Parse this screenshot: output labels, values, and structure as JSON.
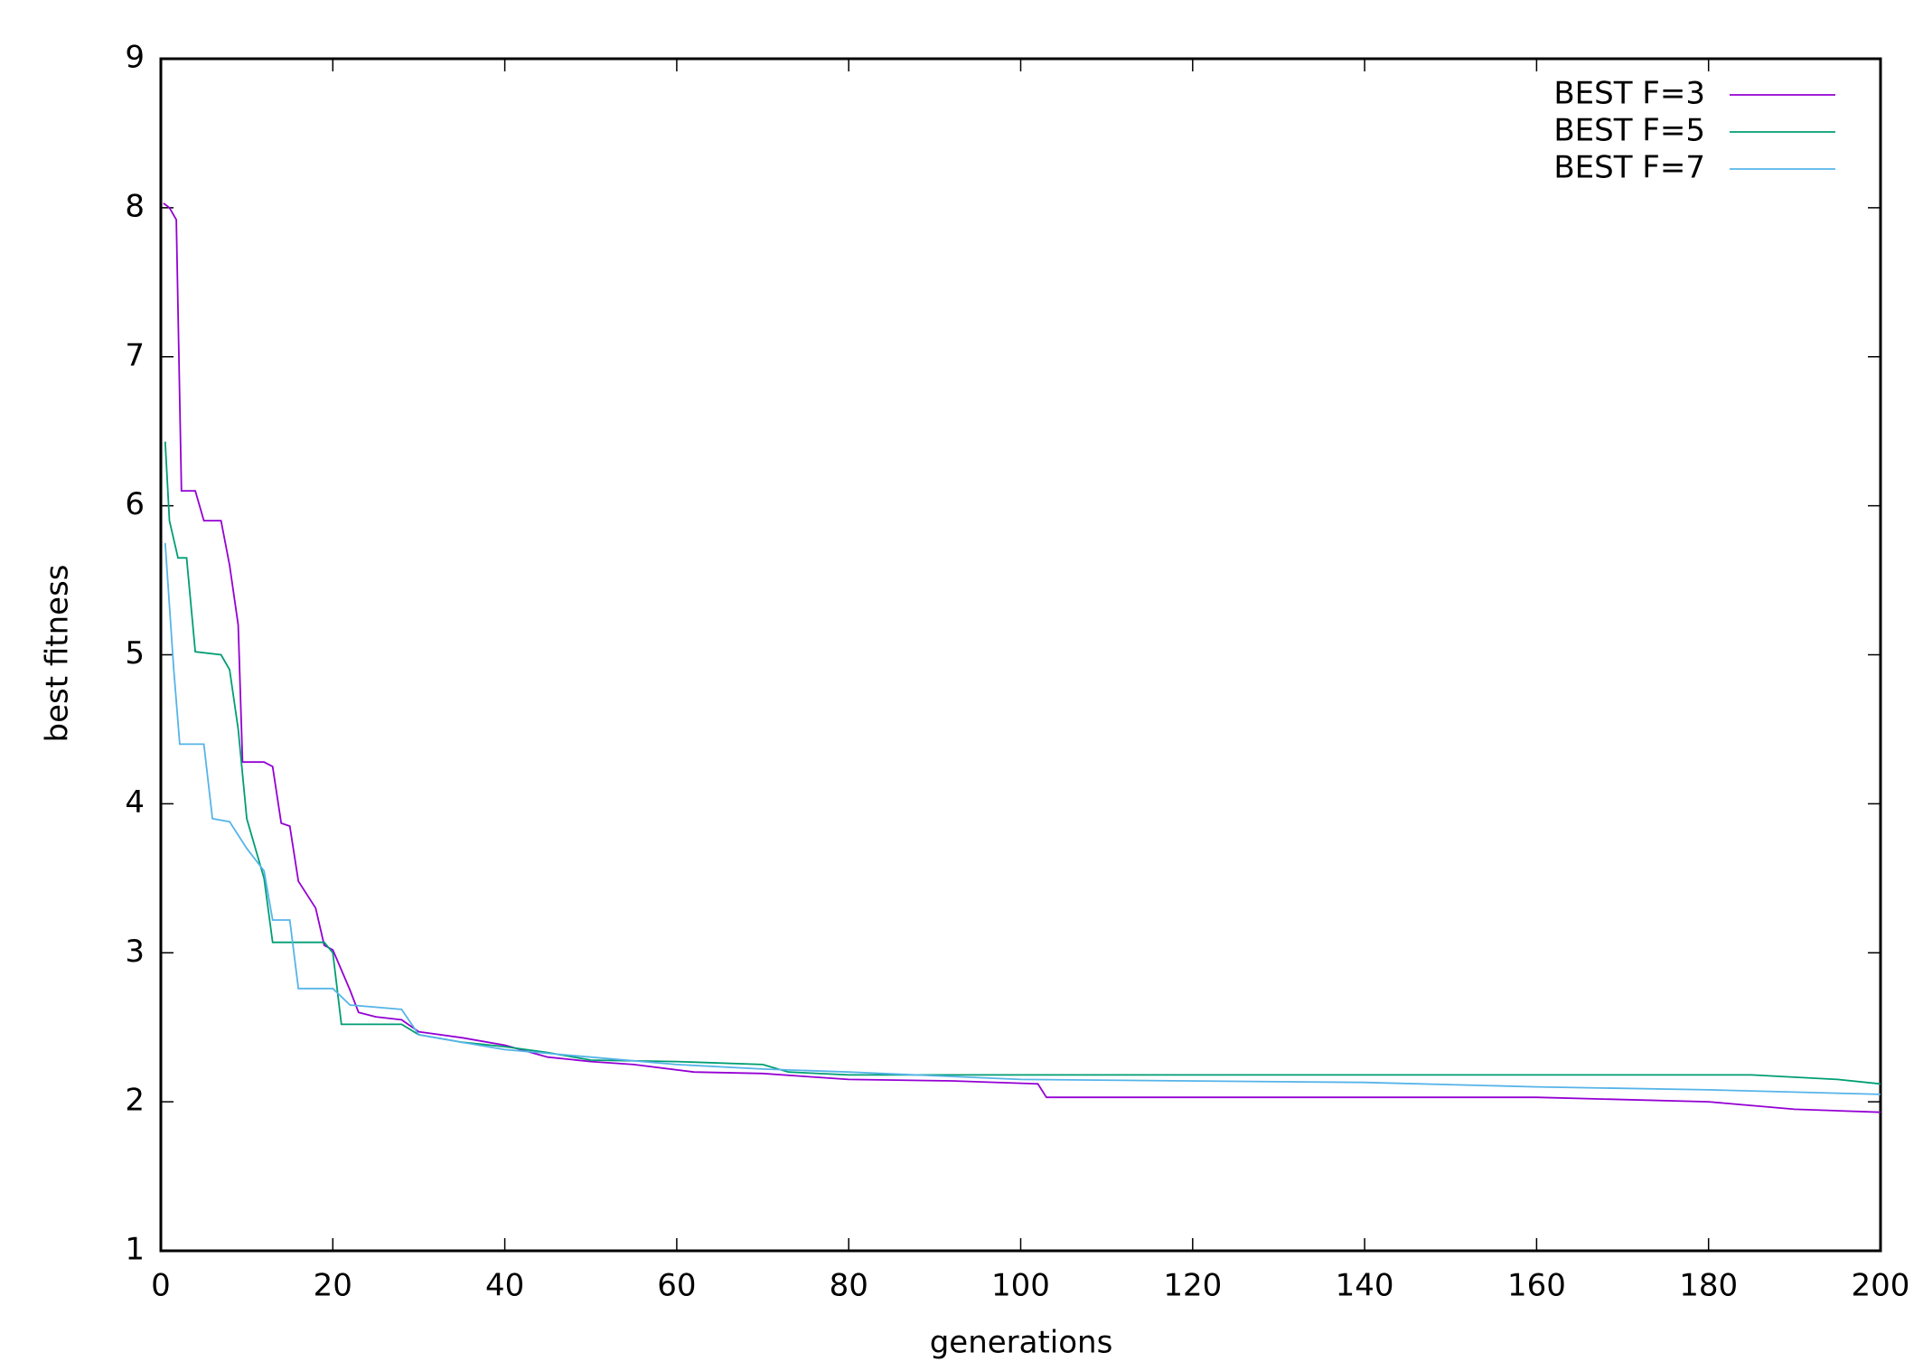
{
  "chart_data": {
    "type": "line",
    "xlabel": "generations",
    "ylabel": "best fitness",
    "xlim": [
      0,
      200
    ],
    "ylim": [
      1,
      9
    ],
    "xticks": [
      0,
      20,
      40,
      60,
      80,
      100,
      120,
      140,
      160,
      180,
      200
    ],
    "yticks": [
      1,
      2,
      3,
      4,
      5,
      6,
      7,
      8,
      9
    ],
    "legend": "top-right",
    "series": [
      {
        "name": "BEST F=3",
        "color": "#9400d3",
        "x": [
          0.3,
          1,
          1.8,
          2.4,
          4,
          5,
          7,
          8,
          9,
          9.5,
          12,
          13,
          14,
          15,
          16,
          18,
          19,
          20,
          22,
          23,
          25,
          28,
          30,
          35,
          40,
          45,
          50,
          55,
          62,
          70,
          75,
          80,
          92,
          102,
          103,
          160,
          180,
          190,
          200
        ],
        "values": [
          8.03,
          8.0,
          7.92,
          6.1,
          6.1,
          5.9,
          5.9,
          5.6,
          5.2,
          4.28,
          4.28,
          4.25,
          3.87,
          3.85,
          3.48,
          3.3,
          3.05,
          3.02,
          2.75,
          2.6,
          2.57,
          2.55,
          2.47,
          2.43,
          2.38,
          2.3,
          2.27,
          2.25,
          2.2,
          2.19,
          2.17,
          2.15,
          2.14,
          2.12,
          2.03,
          2.03,
          2.0,
          1.95,
          1.93
        ]
      },
      {
        "name": "BEST F=5",
        "color": "#009e73",
        "x": [
          0.5,
          1,
          2,
          3,
          4,
          7,
          8,
          9,
          10,
          12,
          13,
          19,
          20,
          21,
          28,
          30,
          35,
          40,
          45,
          50,
          60,
          70,
          73,
          80,
          185,
          195,
          200
        ],
        "values": [
          6.43,
          5.9,
          5.65,
          5.65,
          5.02,
          5.0,
          4.9,
          4.5,
          3.9,
          3.5,
          3.07,
          3.07,
          3.0,
          2.52,
          2.52,
          2.45,
          2.4,
          2.37,
          2.33,
          2.28,
          2.27,
          2.25,
          2.2,
          2.18,
          2.18,
          2.15,
          2.12
        ]
      },
      {
        "name": "BEST F=7",
        "color": "#56b4e9",
        "x": [
          0.5,
          1.5,
          2.2,
          5,
          6,
          8,
          10,
          12,
          13,
          15,
          16,
          20,
          22,
          28,
          30,
          35,
          40,
          50,
          60,
          70,
          80,
          100,
          140,
          160,
          180,
          200
        ],
        "values": [
          5.75,
          4.9,
          4.4,
          4.4,
          3.9,
          3.88,
          3.7,
          3.55,
          3.22,
          3.22,
          2.76,
          2.76,
          2.65,
          2.62,
          2.45,
          2.4,
          2.35,
          2.3,
          2.25,
          2.22,
          2.2,
          2.15,
          2.13,
          2.1,
          2.08,
          2.05
        ]
      }
    ]
  }
}
